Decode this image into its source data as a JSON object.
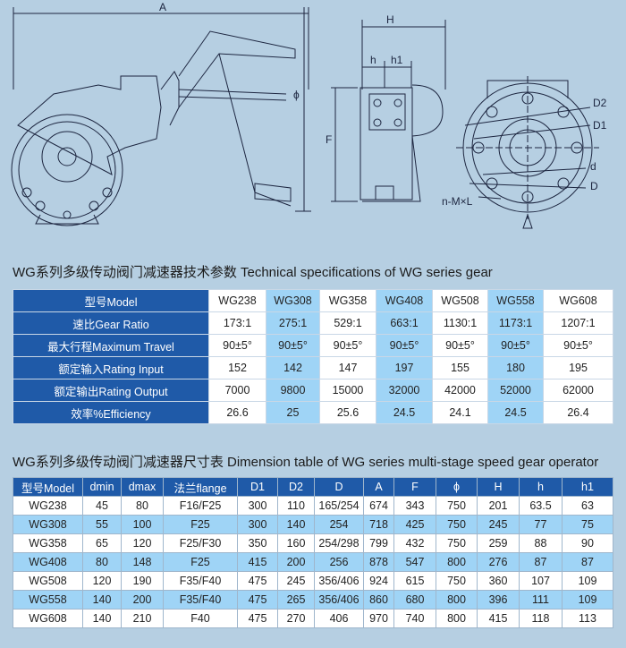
{
  "drawing": {
    "labels": {
      "A": "A",
      "H": "H",
      "h": "h",
      "h1": "h1",
      "F": "F",
      "phi": "ϕ",
      "D2": "D2",
      "D1": "D1",
      "d": "d",
      "D": "D",
      "nml": "n-M×L"
    }
  },
  "spec_table": {
    "title": "WG系列多级传动阀门减速器技术参数 Technical specifications of WG series gear",
    "header": [
      "型号Model",
      "WG238",
      "WG308",
      "WG358",
      "WG408",
      "WG508",
      "WG558",
      "WG608"
    ],
    "rows": [
      [
        "速比Gear Ratio",
        "173:1",
        "275:1",
        "529:1",
        "663:1",
        "1130:1",
        "1173:1",
        "1207:1"
      ],
      [
        "最大行程Maximum Travel",
        "90±5°",
        "90±5°",
        "90±5°",
        "90±5°",
        "90±5°",
        "90±5°",
        "90±5°"
      ],
      [
        "额定输入Rating Input",
        152,
        142,
        147,
        197,
        155,
        180,
        195
      ],
      [
        "额定输出Rating Output",
        7000,
        9800,
        15000,
        32000,
        42000,
        52000,
        62000
      ],
      [
        "效率%Efficiency",
        26.6,
        25,
        25.6,
        24.5,
        24.1,
        24.5,
        26.4
      ]
    ]
  },
  "dimension_table": {
    "title": "WG系列多级传动阀门减速器尺寸表 Dimension table of WG series multi-stage speed gear operator",
    "header": [
      "型号Model",
      "dmin",
      "dmax",
      "法兰flange",
      "D1",
      "D2",
      "D",
      "A",
      "F",
      "ϕ",
      "H",
      "h",
      "h1"
    ],
    "rows": [
      [
        "WG238",
        45,
        80,
        "F16/F25",
        300,
        110,
        "165/254",
        674,
        343,
        750,
        201,
        63.5,
        63
      ],
      [
        "WG308",
        55,
        100,
        "F25",
        300,
        140,
        254,
        718,
        425,
        750,
        245,
        77,
        75
      ],
      [
        "WG358",
        65,
        120,
        "F25/F30",
        350,
        160,
        "254/298",
        799,
        432,
        750,
        259,
        88,
        90
      ],
      [
        "WG408",
        80,
        148,
        "F25",
        415,
        200,
        256,
        878,
        547,
        800,
        276,
        87,
        87
      ],
      [
        "WG508",
        120,
        190,
        "F35/F40",
        475,
        245,
        "356/406",
        924,
        615,
        750,
        360,
        107,
        109
      ],
      [
        "WG558",
        140,
        200,
        "F35/F40",
        475,
        265,
        "356/406",
        860,
        680,
        800,
        396,
        111,
        109
      ],
      [
        "WG608",
        140,
        210,
        "F40",
        475,
        270,
        406,
        970,
        740,
        800,
        415,
        118,
        113
      ]
    ]
  }
}
